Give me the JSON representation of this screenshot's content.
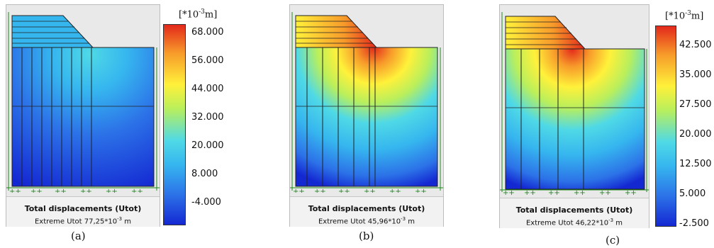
{
  "panels": [
    {
      "id": "a",
      "label": "(a)",
      "caption_title": "Total displacements (Utot)",
      "caption_prefix": "Extreme Utot 77,25*10",
      "caption_exp": "-3",
      "caption_unit": "m",
      "unit_base": "[*10",
      "unit_exp": "-3",
      "unit_tail": "m]",
      "ticks": [
        "68.000",
        "56.000",
        "44.000",
        "32.000",
        "20.000",
        "8.000",
        "-4.000"
      ],
      "contour_variant": "low"
    },
    {
      "id": "b",
      "label": "(b)",
      "caption_title": "Total displacements (Utot)",
      "caption_prefix": "Extreme Utot 45,96*10",
      "caption_exp": "-3",
      "caption_unit": "m",
      "unit_base": "",
      "unit_exp": "",
      "unit_tail": "",
      "ticks": [],
      "contour_variant": "high"
    },
    {
      "id": "c",
      "label": "(c)",
      "caption_title": "Total displacements (Utot)",
      "caption_prefix": "Extreme Utot 46,22*10",
      "caption_exp": "-3",
      "caption_unit": "m",
      "unit_base": "[*10",
      "unit_exp": "-3",
      "unit_tail": "m]",
      "ticks": [
        "42.500",
        "35.000",
        "27.500",
        "20.000",
        "12.500",
        "5.000",
        "-2.500"
      ],
      "contour_variant": "high"
    }
  ],
  "colors": {
    "deep_blue": "#1428d2",
    "blue": "#2c72e8",
    "light_blue": "#36b6ef",
    "cyan": "#4fd9e6",
    "green": "#b9ef5c",
    "yellow": "#fff13a",
    "orange": "#f79a2a",
    "red": "#e3281b",
    "frame_bg": "#e9e9e9",
    "caption_bg": "#f2f2f2"
  },
  "icons": [
    "support-fixity-icon"
  ]
}
